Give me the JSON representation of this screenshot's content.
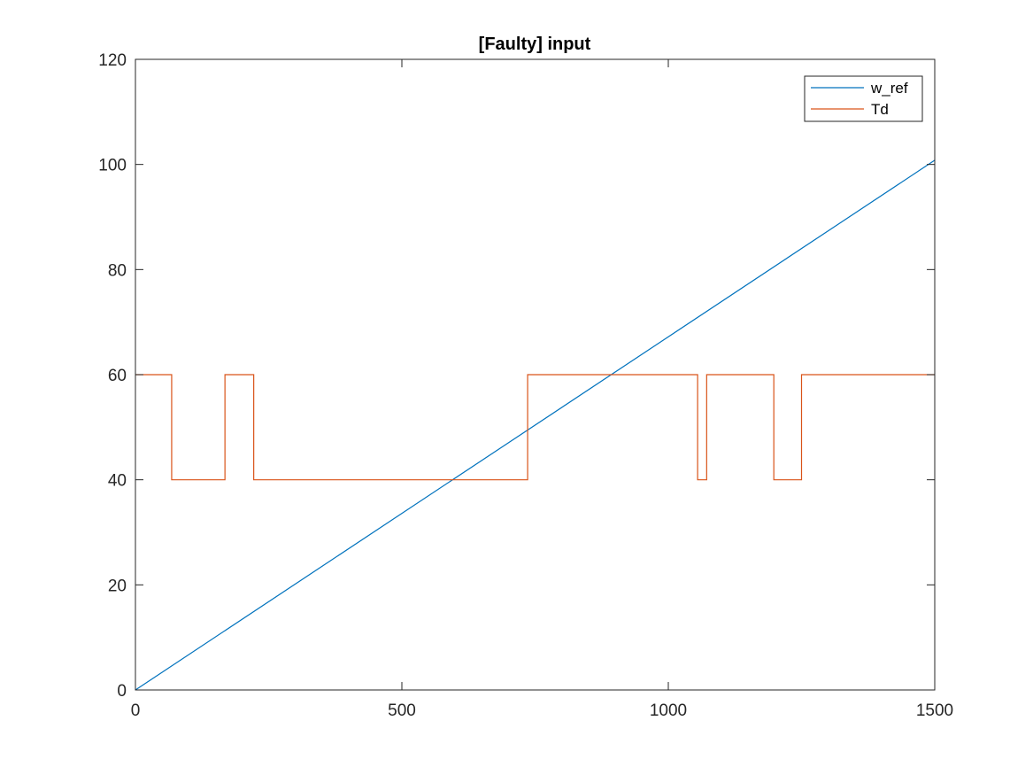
{
  "chart_data": {
    "type": "line",
    "title": "[Faulty] input",
    "xlabel": "",
    "ylabel": "",
    "xlim": [
      0,
      1500
    ],
    "ylim": [
      0,
      120
    ],
    "xticks": [
      0,
      500,
      1000,
      1500
    ],
    "yticks": [
      0,
      20,
      40,
      60,
      80,
      100,
      120
    ],
    "grid": false,
    "legend": {
      "placement": "top-right",
      "entries": [
        "w_ref",
        "Td"
      ]
    },
    "series": [
      {
        "name": "w_ref",
        "color": "#0072BD",
        "points": [
          [
            0,
            0
          ],
          [
            1500,
            100.8
          ]
        ]
      },
      {
        "name": "Td",
        "color": "#D95319",
        "points": [
          [
            0,
            60
          ],
          [
            68,
            60
          ],
          [
            68,
            40
          ],
          [
            168,
            40
          ],
          [
            168,
            60
          ],
          [
            222,
            60
          ],
          [
            222,
            40
          ],
          [
            736,
            40
          ],
          [
            736,
            60
          ],
          [
            1055,
            60
          ],
          [
            1055,
            40
          ],
          [
            1072,
            40
          ],
          [
            1072,
            60
          ],
          [
            1198,
            60
          ],
          [
            1198,
            40
          ],
          [
            1250,
            40
          ],
          [
            1250,
            60
          ],
          [
            1500,
            60
          ]
        ]
      }
    ]
  }
}
